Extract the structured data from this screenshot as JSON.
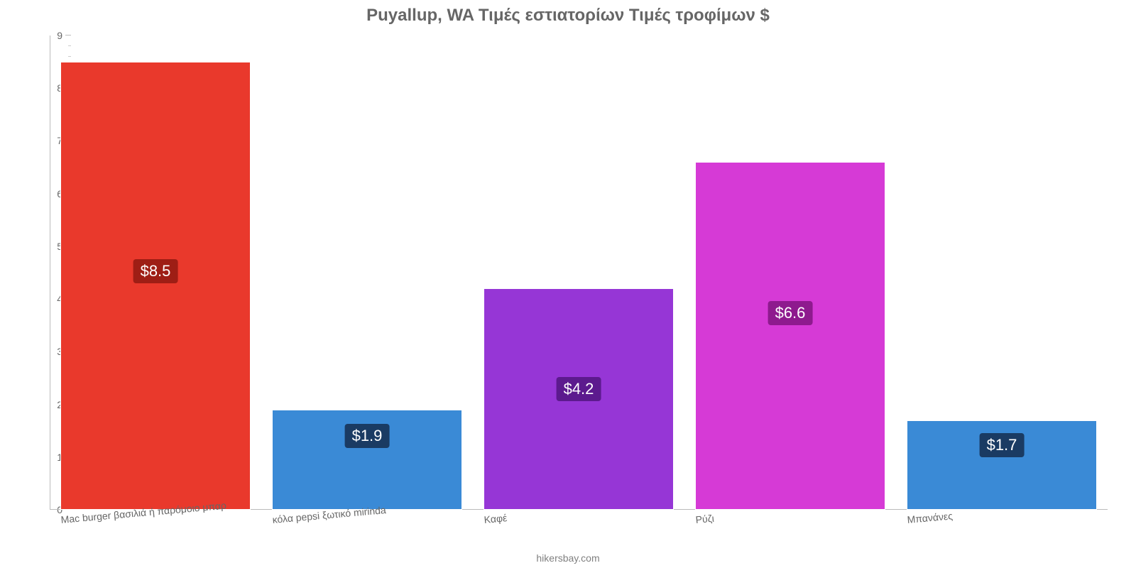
{
  "chart": {
    "type": "bar",
    "title": "Puyallup, WA Τιμές εστιατορίων Τιμές τροφίμων $",
    "title_color": "#666666",
    "title_fontsize": 24,
    "background_color": "#ffffff",
    "categories": [
      "Mac burger βασιλιά ή παρόμοιο μπαρ",
      "κόλα pepsi ξωτικό mirinda",
      "Καφέ",
      "Ρύζι",
      "Μπανάνες"
    ],
    "values": [
      8.5,
      1.9,
      4.2,
      6.6,
      1.7
    ],
    "display_values": [
      "$8.5",
      "$1.9",
      "$4.2",
      "$6.6",
      "$1.7"
    ],
    "bar_colors": [
      "#e9392c",
      "#3a8ad6",
      "#9636d6",
      "#d63ad6",
      "#3a8ad6"
    ],
    "badge_colors": [
      "#9e1e15",
      "#1a3b63",
      "#5c1a8e",
      "#8e1a8e",
      "#1a3b63"
    ],
    "badge_text_color": "#ffffff",
    "badge_fontsize": 22,
    "ylim": [
      0,
      9
    ],
    "ytick_step": 1,
    "minor_tick_step": 0.2,
    "axis_color": "#bbbbbb",
    "tick_label_color": "#666666",
    "tick_label_fontsize": 14,
    "xlabel_fontsize": 14,
    "xlabel_color": "#666666",
    "xlabel_rotation_deg": -5,
    "bar_width_ratio": 0.9,
    "value_label_positions_from_top": [
      0.44,
      0.14,
      0.4,
      0.4,
      0.14
    ]
  },
  "attribution": "hikersbay.com"
}
